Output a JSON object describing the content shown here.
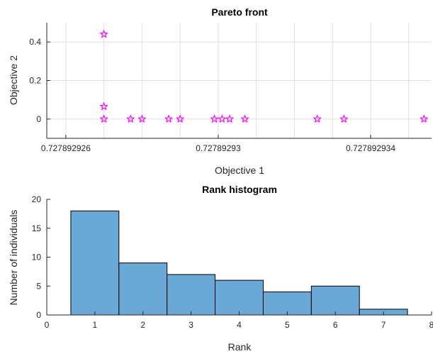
{
  "chart_data": [
    {
      "type": "scatter",
      "title": "Pareto front",
      "xlabel": "Objective 1",
      "ylabel": "Objective 2",
      "xlim": [
        0.7278929255,
        0.7278929356
      ],
      "ylim": [
        -0.1,
        0.5
      ],
      "xticks": [
        0.727892926,
        0.72789293,
        0.727892934
      ],
      "xtick_labels": [
        "0.727892926",
        "0.72789293",
        "0.727892934"
      ],
      "yticks": [
        0,
        0.2,
        0.4
      ],
      "ytick_labels": [
        "0",
        "0.2",
        "0.4"
      ],
      "grid": true,
      "marker": "pentagram",
      "color": "#ff00ff",
      "x": [
        0.727892927,
        0.727892927,
        0.727892927,
        0.7278929277,
        0.727892928,
        0.7278929287,
        0.727892929,
        0.7278929299,
        0.7278929301,
        0.7278929303,
        0.7278929307,
        0.7278929326,
        0.7278929333,
        0.7278929354,
        0.7278929372
      ],
      "y": [
        0.44,
        0.065,
        0,
        0,
        0,
        0,
        0,
        0,
        0,
        0,
        0,
        0,
        0,
        0,
        0
      ]
    },
    {
      "type": "bar",
      "title": "Rank histogram",
      "xlabel": "Rank",
      "ylabel": "Number of individuals",
      "categories": [
        1,
        2,
        3,
        4,
        5,
        6,
        7
      ],
      "values": [
        18,
        9,
        7,
        6,
        4,
        5,
        1
      ],
      "xlim": [
        0,
        8
      ],
      "ylim": [
        0,
        20
      ],
      "xticks": [
        0,
        1,
        2,
        3,
        4,
        5,
        6,
        7,
        8
      ],
      "yticks": [
        0,
        5,
        10,
        15,
        20
      ],
      "bar_color": "#6aa9d6",
      "edge_color": "#000000",
      "grid": false
    }
  ]
}
